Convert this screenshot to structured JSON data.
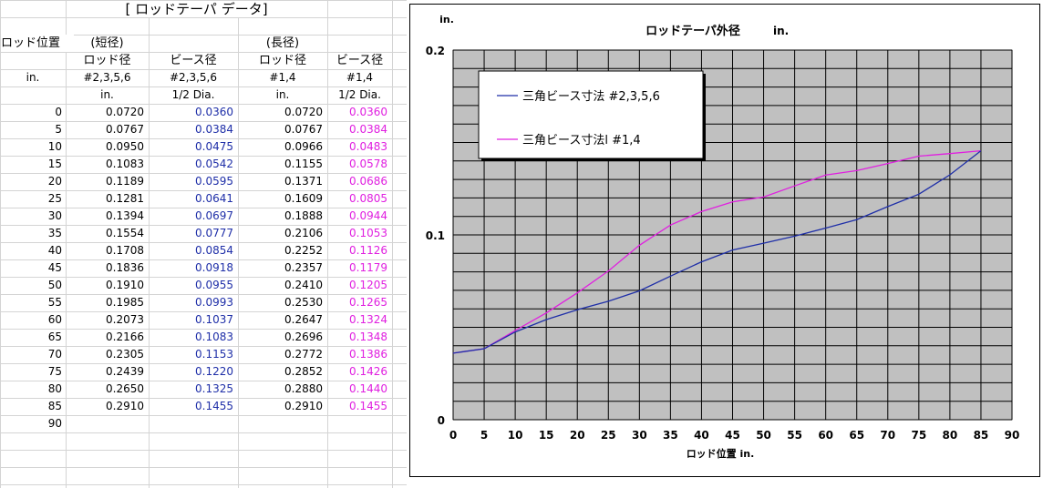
{
  "table": {
    "title": "[  ロッドテーパ  データ]",
    "header_row1": [
      "ロッド位置",
      "(短径)",
      "",
      "(長径)",
      ""
    ],
    "header_row2": [
      "",
      "ロッド径",
      "ビース径",
      "ロッド径",
      "ビース径"
    ],
    "header_row3": [
      "in.",
      "#2,3,5,6",
      "#2,3,5,6",
      "#1,4",
      "#1,4"
    ],
    "header_row4": [
      "",
      "in.",
      "1/2 Dia.",
      "in.",
      "1/2 Dia."
    ],
    "rows": [
      [
        "0",
        "0.0720",
        "0.0360",
        "0.0720",
        "0.0360"
      ],
      [
        "5",
        "0.0767",
        "0.0384",
        "0.0767",
        "0.0384"
      ],
      [
        "10",
        "0.0950",
        "0.0475",
        "0.0966",
        "0.0483"
      ],
      [
        "15",
        "0.1083",
        "0.0542",
        "0.1155",
        "0.0578"
      ],
      [
        "20",
        "0.1189",
        "0.0595",
        "0.1371",
        "0.0686"
      ],
      [
        "25",
        "0.1281",
        "0.0641",
        "0.1609",
        "0.0805"
      ],
      [
        "30",
        "0.1394",
        "0.0697",
        "0.1888",
        "0.0944"
      ],
      [
        "35",
        "0.1554",
        "0.0777",
        "0.2106",
        "0.1053"
      ],
      [
        "40",
        "0.1708",
        "0.0854",
        "0.2252",
        "0.1126"
      ],
      [
        "45",
        "0.1836",
        "0.0918",
        "0.2357",
        "0.1179"
      ],
      [
        "50",
        "0.1910",
        "0.0955",
        "0.2410",
        "0.1205"
      ],
      [
        "55",
        "0.1985",
        "0.0993",
        "0.2530",
        "0.1265"
      ],
      [
        "60",
        "0.2073",
        "0.1037",
        "0.2647",
        "0.1324"
      ],
      [
        "65",
        "0.2166",
        "0.1083",
        "0.2696",
        "0.1348"
      ],
      [
        "70",
        "0.2305",
        "0.1153",
        "0.2772",
        "0.1386"
      ],
      [
        "75",
        "0.2439",
        "0.1220",
        "0.2852",
        "0.1426"
      ],
      [
        "80",
        "0.2650",
        "0.1325",
        "0.2880",
        "0.1440"
      ],
      [
        "85",
        "0.2910",
        "0.1455",
        "0.2910",
        "0.1455"
      ],
      [
        "90",
        "",
        "",
        "",
        ""
      ]
    ]
  },
  "colors": {
    "series_blue": "#1f2fa8",
    "series_pink": "#e020e0",
    "plot_background": "#c0c0c0",
    "gridline": "#000000"
  },
  "chart_data": {
    "type": "line",
    "title": "ロッドテーパ外径",
    "title_unit": "in.",
    "xlabel": "ロッド位置  in.",
    "ylabel": "in.",
    "xlim": [
      0,
      90
    ],
    "ylim": [
      0,
      0.2
    ],
    "x_ticks": [
      "0",
      "5",
      "10",
      "15",
      "20",
      "25",
      "30",
      "35",
      "40",
      "45",
      "50",
      "55",
      "60",
      "65",
      "70",
      "75",
      "80",
      "85",
      "90"
    ],
    "y_ticks": [
      "0",
      "0.1",
      "0.2"
    ],
    "x": [
      0,
      5,
      10,
      15,
      20,
      25,
      30,
      35,
      40,
      45,
      50,
      55,
      60,
      65,
      70,
      75,
      80,
      85
    ],
    "series": [
      {
        "name": "三角ビース寸法 #2,3,5,6",
        "color": "#1f2fa8",
        "values": [
          0.036,
          0.0384,
          0.0475,
          0.0542,
          0.0595,
          0.0641,
          0.0697,
          0.0777,
          0.0854,
          0.0918,
          0.0955,
          0.0993,
          0.1037,
          0.1083,
          0.1153,
          0.122,
          0.1325,
          0.1455
        ]
      },
      {
        "name": "三角ビース寸法l #1,4",
        "color": "#e020e0",
        "values": [
          0.036,
          0.0384,
          0.0483,
          0.0578,
          0.0686,
          0.0805,
          0.0944,
          0.1053,
          0.1126,
          0.1179,
          0.1205,
          0.1265,
          0.1324,
          0.1348,
          0.1386,
          0.1426,
          0.144,
          0.1455
        ]
      }
    ],
    "grid": true,
    "legend_position": "top-left"
  }
}
